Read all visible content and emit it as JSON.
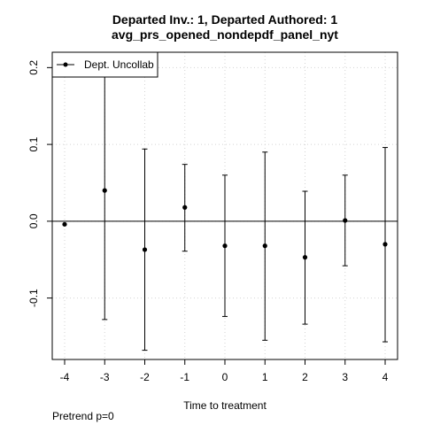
{
  "chart_data": {
    "type": "scatter",
    "title": "Departed Inv.: 1, Departed Authored: 1",
    "subtitle": "avg_prs_opened_nondepdf_panel_nyt",
    "xlabel": "Time to treatment",
    "ylabel": "",
    "x": [
      -4,
      -3,
      -2,
      -1,
      0,
      1,
      2,
      3,
      4
    ],
    "xlim": [
      -4,
      4
    ],
    "ylim": [
      -0.18,
      0.22
    ],
    "x_ticks": [
      "-4",
      "-3",
      "-2",
      "-1",
      "0",
      "1",
      "2",
      "3",
      "4"
    ],
    "y_ticks": [
      "-0.1",
      "0.0",
      "0.1",
      "0.2"
    ],
    "y_tick_values": [
      -0.1,
      0.0,
      0.1,
      0.2
    ],
    "reference_line_y": 0,
    "grid": true,
    "legend_position": "top-left",
    "series": [
      {
        "name": "Dept. Uncollab",
        "values": [
          -0.004,
          0.04,
          -0.037,
          0.018,
          -0.032,
          -0.032,
          -0.047,
          0.001,
          -0.03
        ],
        "lower": [
          null,
          -0.128,
          -0.168,
          -0.039,
          -0.124,
          -0.155,
          -0.134,
          -0.058,
          -0.157
        ],
        "upper": [
          null,
          0.2,
          0.094,
          0.074,
          0.06,
          0.09,
          0.039,
          0.06,
          0.096
        ]
      }
    ],
    "footnote": "Pretrend p=0"
  },
  "colors": {
    "background": "#ffffff",
    "series": "#000000",
    "grid": "#d3d3d3",
    "reference_line": "#000000"
  }
}
